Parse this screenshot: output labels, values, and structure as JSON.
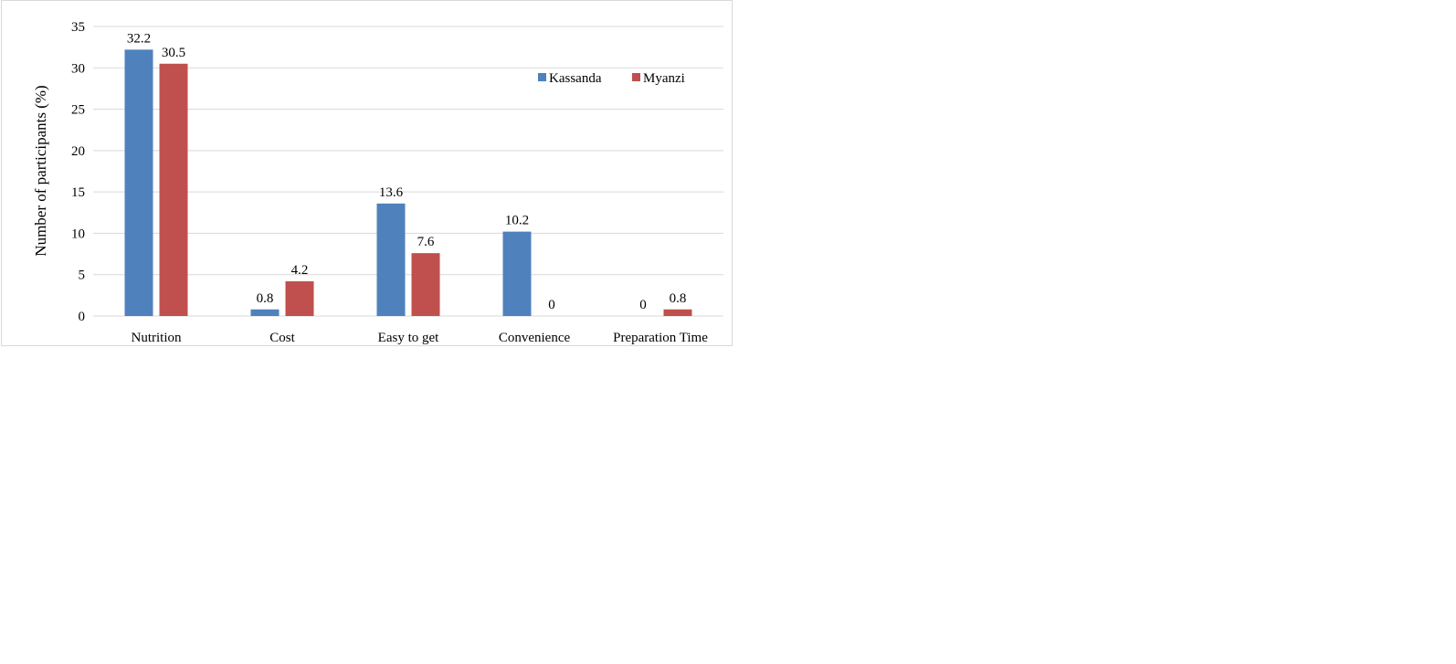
{
  "chart_data": {
    "type": "bar",
    "title": "",
    "xlabel": "",
    "ylabel": "Number of participants (%)",
    "categories": [
      "Nutrition",
      "Cost",
      "Easy to get",
      "Convenience",
      "Preparation Time"
    ],
    "series": [
      {
        "name": "Kassanda",
        "color": "#4f81bd",
        "values": [
          32.2,
          0.8,
          13.6,
          10.2,
          0
        ],
        "labels": [
          "32.2",
          "0.8",
          "13.6",
          "10.2",
          "0"
        ]
      },
      {
        "name": "Myanzi",
        "color": "#c0504d",
        "values": [
          30.5,
          4.2,
          7.6,
          0,
          0.8
        ],
        "labels": [
          "30.5",
          "4.2",
          "7.6",
          "0",
          "0.8"
        ]
      }
    ],
    "ylim": [
      0,
      35
    ],
    "yticks": [
      0,
      5,
      10,
      15,
      20,
      25,
      30,
      35
    ],
    "ytick_labels": [
      "0",
      "5",
      "10",
      "15",
      "20",
      "25",
      "30",
      "35"
    ],
    "grid": true,
    "gridline_color": "#d9d9d9",
    "legend": "top-right"
  }
}
